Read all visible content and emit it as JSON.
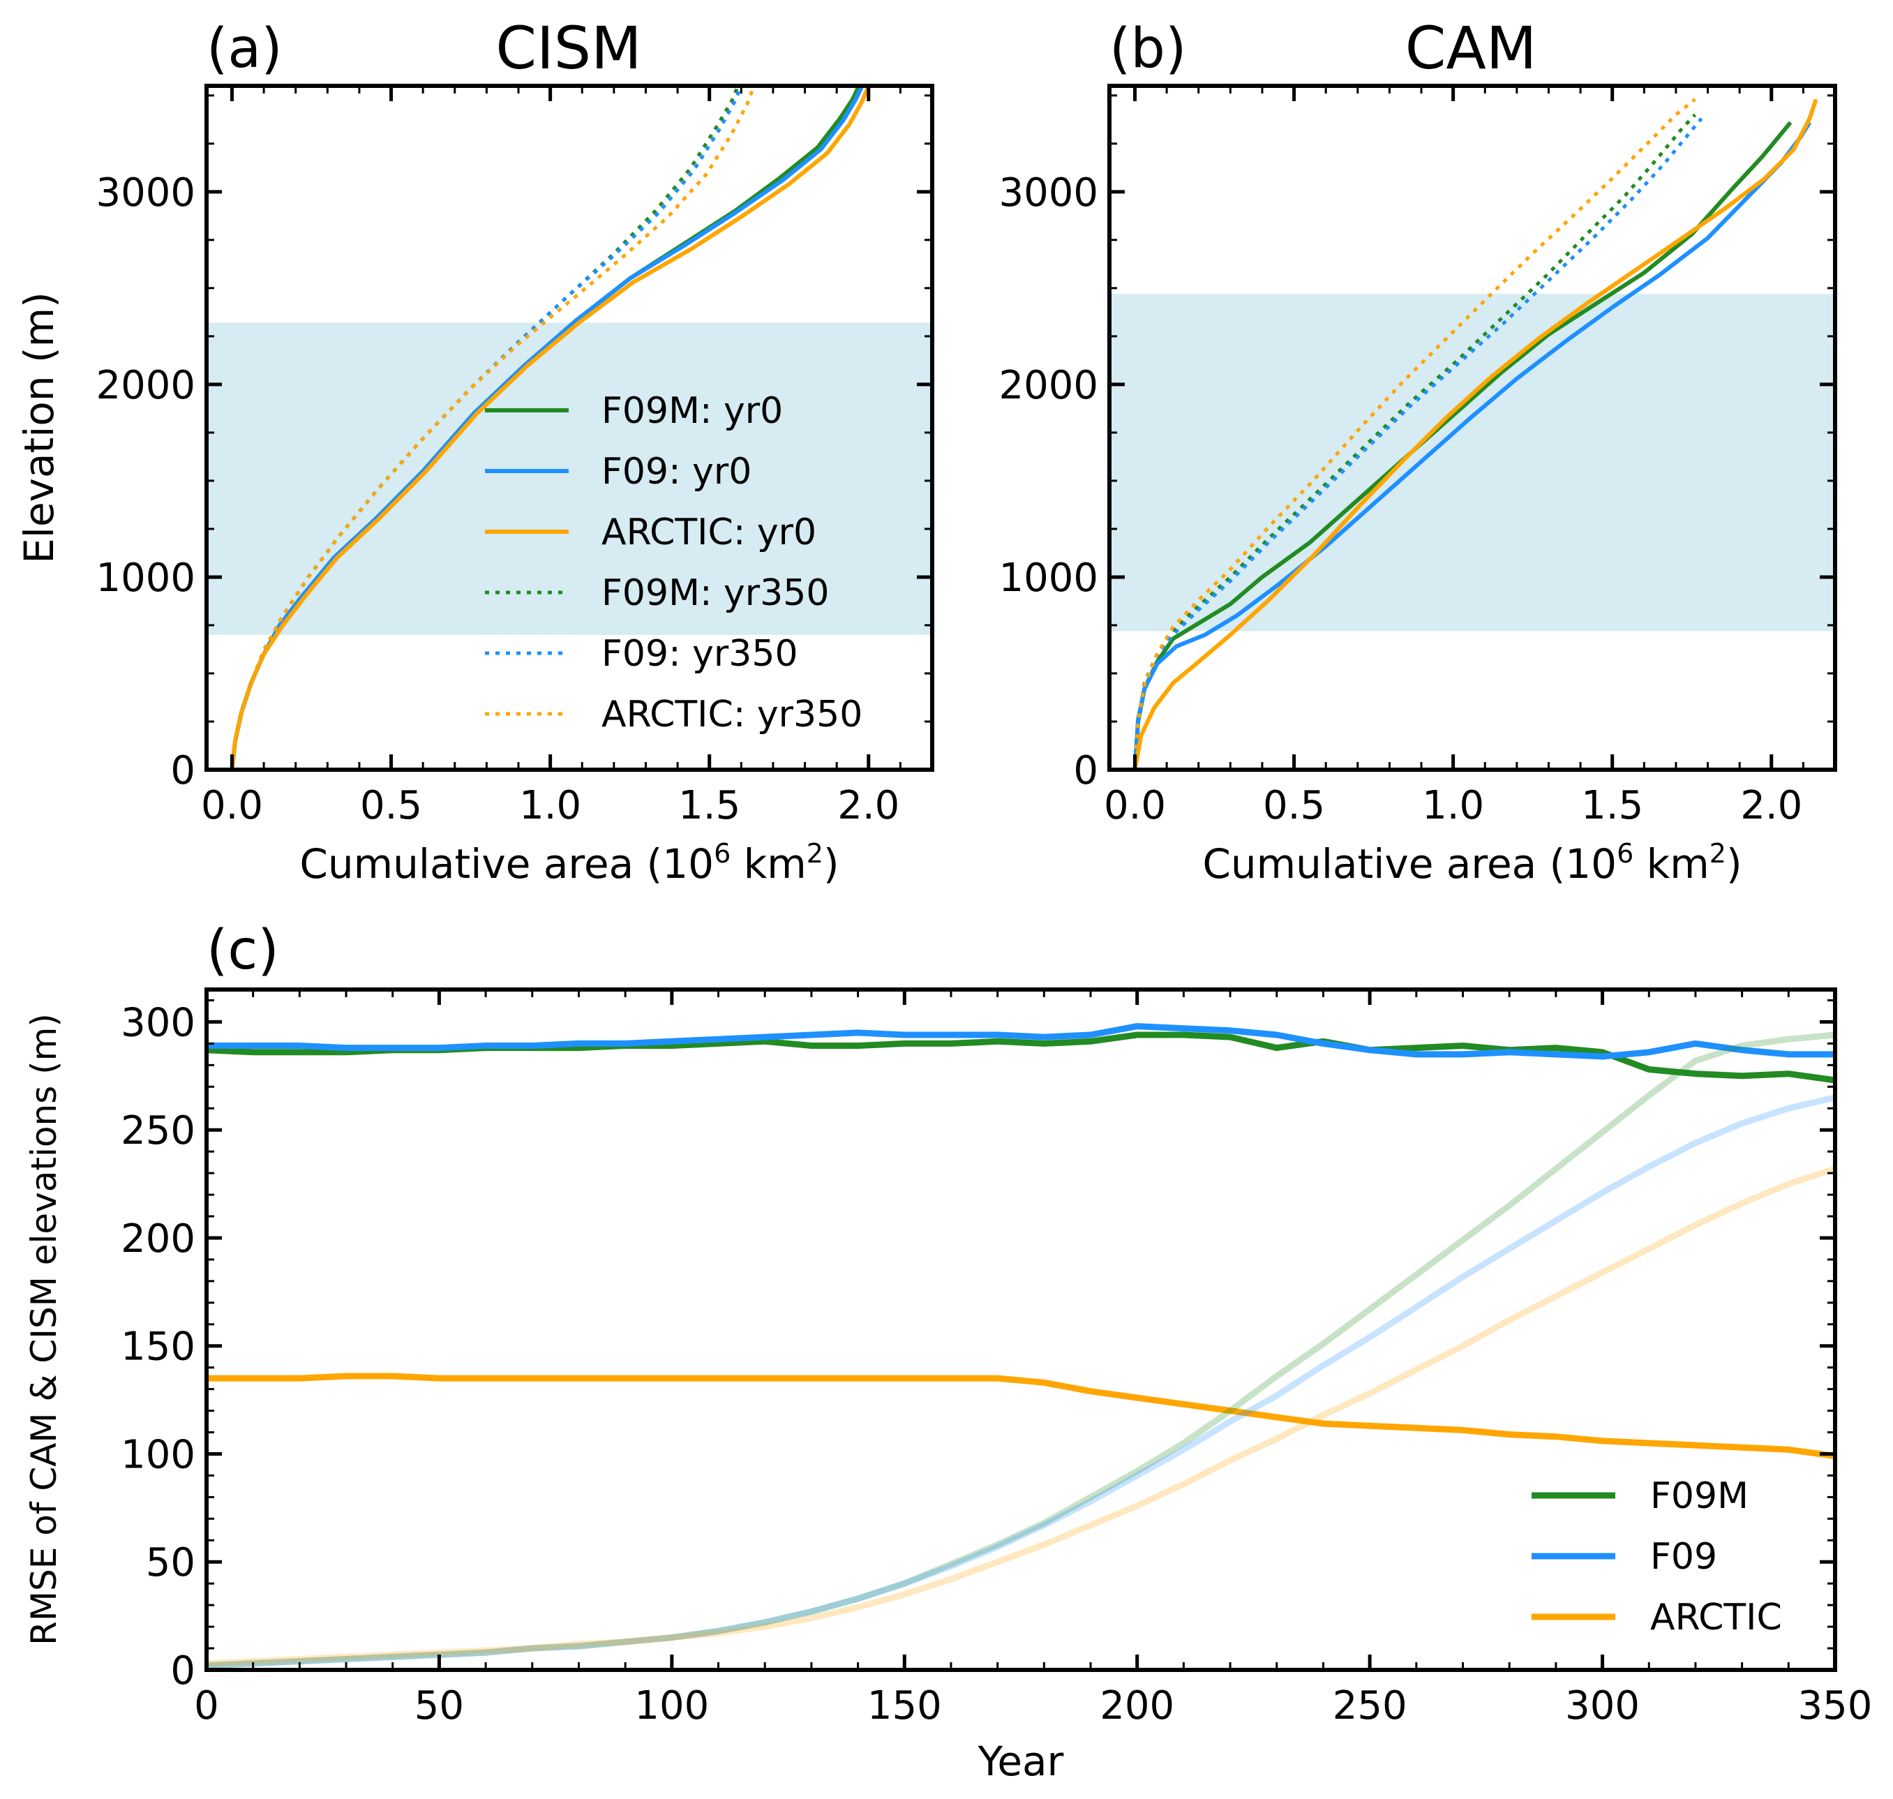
{
  "colors": {
    "F09M": "#228b22",
    "F09": "#1e90ff",
    "ARCTIC": "#ffa500",
    "band": "#add8e6"
  },
  "chart_data": [
    {
      "panel": "(a)",
      "title": "CISM",
      "type": "line",
      "xlabel": "Cumulative area (10",
      "xlabel_sup": "6",
      "xlabel_mid": " km",
      "xlabel_sup2": "2",
      "xlabel_end": ")",
      "ylabel": "Elevation (m)",
      "xlim": [
        -0.08,
        2.2
      ],
      "ylim": [
        0,
        3550
      ],
      "xticks": [
        "0.0",
        "0.5",
        "1.0",
        "1.5",
        "2.0"
      ],
      "yticks": [
        "0",
        "1000",
        "2000",
        "3000"
      ],
      "shaded_band": [
        700,
        2320
      ],
      "legend_position": "center-right",
      "series": [
        {
          "name": "F09M: yr0",
          "color_key": "F09M",
          "style": "solid",
          "x": [
            0.0,
            0.01,
            0.03,
            0.06,
            0.1,
            0.15,
            0.22,
            0.32,
            0.45,
            0.6,
            0.76,
            0.92,
            1.08,
            1.25,
            1.42,
            1.58,
            1.72,
            1.84,
            1.91,
            1.95,
            1.97
          ],
          "y": [
            0,
            150,
            300,
            450,
            600,
            750,
            900,
            1100,
            1300,
            1550,
            1850,
            2100,
            2330,
            2550,
            2730,
            2900,
            3070,
            3230,
            3380,
            3480,
            3550
          ]
        },
        {
          "name": "F09: yr0",
          "color_key": "F09",
          "style": "solid",
          "x": [
            0.0,
            0.01,
            0.03,
            0.06,
            0.1,
            0.15,
            0.22,
            0.32,
            0.45,
            0.6,
            0.76,
            0.92,
            1.08,
            1.25,
            1.42,
            1.58,
            1.73,
            1.85,
            1.92,
            1.96,
            1.98
          ],
          "y": [
            0,
            150,
            300,
            450,
            600,
            750,
            900,
            1100,
            1300,
            1550,
            1850,
            2100,
            2330,
            2550,
            2720,
            2890,
            3060,
            3220,
            3370,
            3480,
            3550
          ]
        },
        {
          "name": "ARCTIC: yr0",
          "color_key": "ARCTIC",
          "style": "solid",
          "x": [
            0.0,
            0.01,
            0.03,
            0.06,
            0.1,
            0.16,
            0.23,
            0.33,
            0.46,
            0.61,
            0.77,
            0.93,
            1.09,
            1.26,
            1.44,
            1.6,
            1.75,
            1.87,
            1.94,
            1.98,
            2.0
          ],
          "y": [
            0,
            150,
            300,
            450,
            600,
            750,
            900,
            1100,
            1300,
            1550,
            1850,
            2100,
            2320,
            2530,
            2700,
            2870,
            3040,
            3200,
            3350,
            3470,
            3550
          ]
        },
        {
          "name": "F09M: yr350",
          "color_key": "F09M",
          "style": "dotted",
          "x": [
            0.0,
            0.01,
            0.03,
            0.06,
            0.1,
            0.16,
            0.24,
            0.34,
            0.46,
            0.6,
            0.75,
            0.9,
            1.05,
            1.2,
            1.33,
            1.44,
            1.52,
            1.57,
            1.59
          ],
          "y": [
            0,
            150,
            300,
            450,
            620,
            800,
            1000,
            1220,
            1460,
            1720,
            1980,
            2220,
            2450,
            2680,
            2900,
            3120,
            3330,
            3470,
            3550
          ]
        },
        {
          "name": "F09: yr350",
          "color_key": "F09",
          "style": "dotted",
          "x": [
            0.0,
            0.01,
            0.03,
            0.06,
            0.1,
            0.16,
            0.24,
            0.34,
            0.46,
            0.6,
            0.75,
            0.9,
            1.05,
            1.2,
            1.34,
            1.45,
            1.53,
            1.58,
            1.6
          ],
          "y": [
            0,
            150,
            300,
            450,
            620,
            800,
            1000,
            1220,
            1460,
            1720,
            1980,
            2220,
            2450,
            2670,
            2890,
            3110,
            3320,
            3470,
            3550
          ]
        },
        {
          "name": "ARCTIC: yr350",
          "color_key": "ARCTIC",
          "style": "dotted",
          "x": [
            0.0,
            0.01,
            0.03,
            0.06,
            0.1,
            0.16,
            0.24,
            0.34,
            0.46,
            0.6,
            0.75,
            0.9,
            1.06,
            1.22,
            1.37,
            1.49,
            1.57,
            1.62,
            1.64
          ],
          "y": [
            0,
            150,
            300,
            450,
            620,
            800,
            1000,
            1220,
            1460,
            1720,
            1980,
            2210,
            2430,
            2650,
            2870,
            3090,
            3300,
            3460,
            3550
          ]
        }
      ]
    },
    {
      "panel": "(b)",
      "title": "CAM",
      "type": "line",
      "xlabel": "Cumulative area (10",
      "xlabel_sup": "6",
      "xlabel_mid": " km",
      "xlabel_sup2": "2",
      "xlabel_end": ")",
      "ylabel": "",
      "xlim": [
        -0.08,
        2.2
      ],
      "ylim": [
        0,
        3550
      ],
      "xticks": [
        "0.0",
        "0.5",
        "1.0",
        "1.5",
        "2.0"
      ],
      "yticks": [
        "0",
        "1000",
        "2000",
        "3000"
      ],
      "shaded_band": [
        720,
        2470
      ],
      "series": [
        {
          "name": "F09M: yr0",
          "color_key": "F09M",
          "style": "solid",
          "x": [
            0.0,
            0.01,
            0.03,
            0.07,
            0.12,
            0.2,
            0.3,
            0.4,
            0.55,
            0.7,
            0.85,
            1.0,
            1.15,
            1.3,
            1.45,
            1.6,
            1.75,
            1.88,
            1.97,
            2.03,
            2.06
          ],
          "y": [
            0,
            250,
            420,
            560,
            680,
            760,
            860,
            1000,
            1180,
            1400,
            1620,
            1840,
            2060,
            2260,
            2420,
            2580,
            2780,
            3020,
            3180,
            3300,
            3360
          ]
        },
        {
          "name": "F09: yr0",
          "color_key": "F09",
          "style": "solid",
          "x": [
            0.0,
            0.01,
            0.03,
            0.07,
            0.13,
            0.22,
            0.32,
            0.45,
            0.6,
            0.75,
            0.9,
            1.05,
            1.2,
            1.35,
            1.5,
            1.65,
            1.8,
            1.93,
            2.03,
            2.09,
            2.12
          ],
          "y": [
            0,
            260,
            420,
            550,
            640,
            700,
            800,
            960,
            1160,
            1380,
            1600,
            1820,
            2030,
            2220,
            2400,
            2570,
            2760,
            2980,
            3150,
            3280,
            3360
          ]
        },
        {
          "name": "ARCTIC: yr0",
          "color_key": "ARCTIC",
          "style": "solid",
          "x": [
            0.0,
            0.02,
            0.06,
            0.12,
            0.2,
            0.3,
            0.42,
            0.56,
            0.7,
            0.84,
            0.98,
            1.12,
            1.27,
            1.42,
            1.57,
            1.72,
            1.86,
            1.98,
            2.07,
            2.12,
            2.14
          ],
          "y": [
            0,
            180,
            320,
            450,
            560,
            700,
            880,
            1110,
            1360,
            1600,
            1830,
            2040,
            2240,
            2420,
            2590,
            2760,
            2920,
            3070,
            3220,
            3380,
            3480
          ]
        },
        {
          "name": "F09M: yr350",
          "color_key": "F09M",
          "style": "dotted",
          "x": [
            0.0,
            0.01,
            0.03,
            0.07,
            0.12,
            0.2,
            0.3,
            0.42,
            0.56,
            0.71,
            0.86,
            1.01,
            1.15,
            1.29,
            1.42,
            1.54,
            1.64,
            1.72,
            1.76
          ],
          "y": [
            0,
            250,
            450,
            600,
            720,
            850,
            1000,
            1200,
            1420,
            1660,
            1900,
            2120,
            2340,
            2560,
            2780,
            2980,
            3170,
            3330,
            3400
          ]
        },
        {
          "name": "F09: yr350",
          "color_key": "F09",
          "style": "dotted",
          "x": [
            0.0,
            0.01,
            0.03,
            0.07,
            0.12,
            0.2,
            0.3,
            0.42,
            0.56,
            0.71,
            0.86,
            1.01,
            1.16,
            1.3,
            1.44,
            1.56,
            1.66,
            1.74,
            1.78
          ],
          "y": [
            0,
            250,
            440,
            590,
            700,
            830,
            980,
            1180,
            1400,
            1640,
            1880,
            2100,
            2320,
            2540,
            2760,
            2960,
            3140,
            3300,
            3380
          ]
        },
        {
          "name": "ARCTIC: yr350",
          "color_key": "ARCTIC",
          "style": "dotted",
          "x": [
            0.0,
            0.01,
            0.03,
            0.07,
            0.12,
            0.2,
            0.3,
            0.42,
            0.56,
            0.7,
            0.84,
            0.98,
            1.12,
            1.25,
            1.38,
            1.5,
            1.61,
            1.7,
            1.76
          ],
          "y": [
            0,
            250,
            440,
            600,
            740,
            880,
            1040,
            1260,
            1500,
            1760,
            2010,
            2240,
            2470,
            2680,
            2880,
            3070,
            3250,
            3400,
            3480
          ]
        }
      ]
    },
    {
      "panel": "(c)",
      "title": "",
      "type": "line",
      "xlabel": "Year",
      "ylabel": "RMSE of CAM & CISM elevations (m)",
      "xlim": [
        0,
        350
      ],
      "ylim": [
        0,
        315
      ],
      "xticks": [
        "0",
        "50",
        "100",
        "150",
        "200",
        "250",
        "300",
        "350"
      ],
      "yticks": [
        "0",
        "50",
        "100",
        "150",
        "200",
        "250",
        "300"
      ],
      "legend_position": "lower right",
      "legend": [
        "F09M",
        "F09",
        "ARCTIC"
      ],
      "x": [
        0,
        10,
        20,
        30,
        40,
        50,
        60,
        70,
        80,
        90,
        100,
        110,
        120,
        130,
        140,
        150,
        160,
        170,
        180,
        190,
        200,
        210,
        220,
        230,
        240,
        250,
        260,
        270,
        280,
        290,
        300,
        310,
        320,
        330,
        340,
        350
      ],
      "series": [
        {
          "name": "F09M",
          "color_key": "F09M",
          "faded": false,
          "values": [
            287,
            286,
            286,
            286,
            287,
            287,
            288,
            288,
            288,
            289,
            289,
            290,
            291,
            289,
            289,
            290,
            290,
            291,
            290,
            291,
            294,
            294,
            293,
            288,
            291,
            287,
            288,
            289,
            287,
            288,
            286,
            278,
            276,
            275,
            276,
            273
          ]
        },
        {
          "name": "F09",
          "color_key": "F09",
          "faded": false,
          "values": [
            289,
            289,
            289,
            288,
            288,
            288,
            289,
            289,
            290,
            290,
            291,
            292,
            293,
            294,
            295,
            294,
            294,
            294,
            293,
            294,
            298,
            297,
            296,
            294,
            290,
            287,
            285,
            285,
            286,
            285,
            284,
            286,
            290,
            287,
            285,
            285
          ]
        },
        {
          "name": "ARCTIC",
          "color_key": "ARCTIC",
          "faded": false,
          "values": [
            135,
            135,
            135,
            136,
            136,
            135,
            135,
            135,
            135,
            135,
            135,
            135,
            135,
            135,
            135,
            135,
            135,
            135,
            133,
            129,
            126,
            123,
            120,
            117,
            114,
            113,
            112,
            111,
            109,
            108,
            106,
            105,
            104,
            103,
            102,
            99
          ]
        },
        {
          "name": "F09M (faded)",
          "color_key": "F09M",
          "faded": true,
          "values": [
            2,
            3,
            4,
            5,
            6,
            7,
            8,
            10,
            11,
            13,
            15,
            18,
            22,
            27,
            33,
            40,
            49,
            58,
            68,
            80,
            92,
            105,
            120,
            136,
            151,
            167,
            183,
            199,
            215,
            232,
            249,
            266,
            282,
            289,
            292,
            294
          ]
        },
        {
          "name": "F09 (faded)",
          "color_key": "F09",
          "faded": true,
          "values": [
            2,
            3,
            4,
            5,
            6,
            7,
            8,
            10,
            11,
            13,
            15,
            18,
            22,
            27,
            33,
            40,
            48,
            57,
            67,
            78,
            90,
            102,
            115,
            127,
            141,
            154,
            168,
            182,
            195,
            208,
            221,
            233,
            244,
            253,
            260,
            265
          ]
        },
        {
          "name": "ARCTIC (faded)",
          "color_key": "ARCTIC",
          "faded": true,
          "values": [
            3,
            4,
            5,
            6,
            7,
            8,
            9,
            10,
            12,
            13,
            15,
            17,
            20,
            24,
            29,
            35,
            42,
            50,
            58,
            67,
            76,
            86,
            97,
            107,
            118,
            128,
            139,
            150,
            162,
            173,
            184,
            195,
            206,
            216,
            225,
            232
          ]
        }
      ]
    }
  ],
  "legend_a": [
    "F09M: yr0",
    "F09: yr0",
    "ARCTIC: yr0",
    "F09M: yr350",
    "F09: yr350",
    "ARCTIC: yr350"
  ]
}
